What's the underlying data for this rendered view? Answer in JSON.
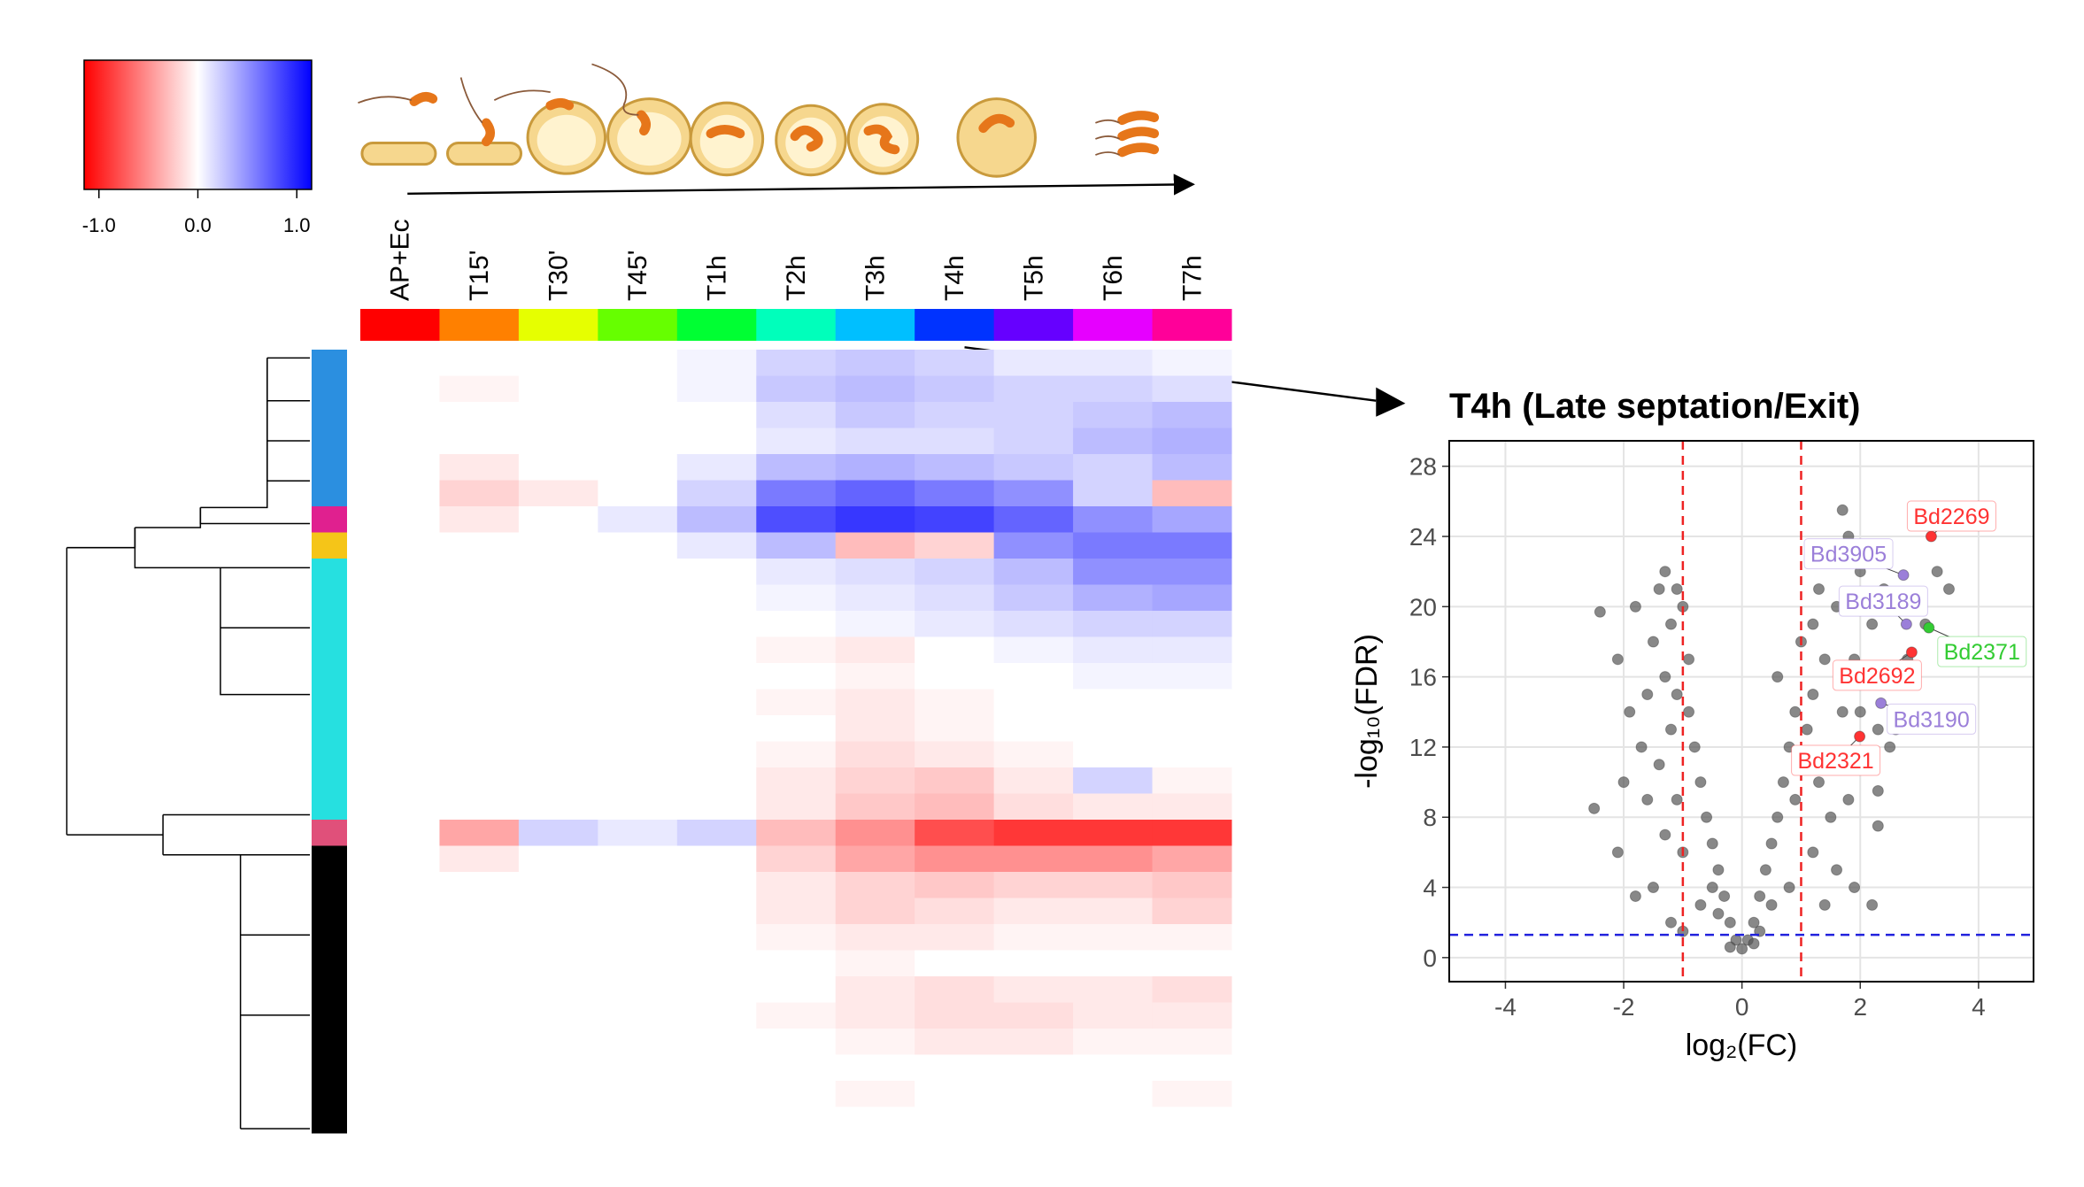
{
  "chart_data": [
    {
      "type": "heatmap",
      "categories": [
        "AP+Ec",
        "T15'",
        "T30'",
        "T45'",
        "T1h",
        "T2h",
        "T3h",
        "T4h",
        "T5h",
        "T6h",
        "T7h"
      ],
      "column_colors": [
        "#ff0000",
        "#ff8000",
        "#e6ff00",
        "#66ff00",
        "#00ff33",
        "#00ffbb",
        "#00bfff",
        "#0033ff",
        "#6600ff",
        "#e600ff",
        "#ff0099"
      ],
      "row_clusters": [
        "#2b8fe0",
        "#2b8fe0",
        "#2b8fe0",
        "#2b8fe0",
        "#2b8fe0",
        "#2b8fe0",
        "#e0208f",
        "#f5c518",
        "#26e0e0",
        "#26e0e0",
        "#26e0e0",
        "#26e0e0",
        "#26e0e0",
        "#26e0e0",
        "#26e0e0",
        "#26e0e0",
        "#26e0e0",
        "#26e0e0",
        "#e0507a",
        "#000000",
        "#000000",
        "#000000",
        "#000000",
        "#000000",
        "#000000",
        "#000000",
        "#000000",
        "#000000",
        "#000000",
        "#000000"
      ],
      "values": [
        [
          0,
          0,
          0,
          0,
          0.05,
          0.2,
          0.25,
          0.2,
          0.1,
          0.1,
          0.05
        ],
        [
          0,
          -0.05,
          0,
          0,
          0.05,
          0.25,
          0.3,
          0.25,
          0.2,
          0.2,
          0.15
        ],
        [
          0,
          0,
          0,
          0,
          0,
          0.15,
          0.25,
          0.2,
          0.2,
          0.25,
          0.3
        ],
        [
          0,
          0,
          0,
          0,
          0,
          0.1,
          0.15,
          0.15,
          0.2,
          0.3,
          0.35
        ],
        [
          0,
          -0.1,
          0,
          0,
          0.1,
          0.3,
          0.35,
          0.3,
          0.25,
          0.2,
          0.3
        ],
        [
          0,
          -0.2,
          -0.1,
          0,
          0.2,
          0.6,
          0.7,
          0.6,
          0.5,
          0.2,
          -0.3
        ],
        [
          0,
          -0.1,
          0,
          0.1,
          0.3,
          0.8,
          0.9,
          0.85,
          0.7,
          0.5,
          0.4
        ],
        [
          0,
          0,
          0,
          0,
          0.1,
          0.3,
          -0.3,
          -0.2,
          0.5,
          0.6,
          0.6
        ],
        [
          0,
          0,
          0,
          0,
          0,
          0.1,
          0.15,
          0.2,
          0.3,
          0.5,
          0.5
        ],
        [
          0,
          0,
          0,
          0,
          0,
          0.05,
          0.1,
          0.15,
          0.25,
          0.35,
          0.4
        ],
        [
          0,
          0,
          0,
          0,
          0,
          0,
          0.05,
          0.1,
          0.15,
          0.2,
          0.2
        ],
        [
          0,
          0,
          0,
          0,
          0,
          -0.05,
          -0.1,
          0,
          0.05,
          0.1,
          0.1
        ],
        [
          0,
          0,
          0,
          0,
          0,
          0,
          -0.05,
          0,
          0,
          0.05,
          0.05
        ],
        [
          0,
          0,
          0,
          0,
          0,
          -0.05,
          -0.1,
          -0.05,
          0,
          0,
          0
        ],
        [
          0,
          0,
          0,
          0,
          0,
          0,
          -0.1,
          -0.05,
          0,
          0,
          0
        ],
        [
          0,
          0,
          0,
          0,
          0,
          -0.05,
          -0.15,
          -0.1,
          -0.05,
          0,
          0
        ],
        [
          0,
          0,
          0,
          0,
          0,
          -0.1,
          -0.2,
          -0.25,
          -0.1,
          0.2,
          -0.05
        ],
        [
          0,
          0,
          0,
          0,
          0,
          -0.1,
          -0.25,
          -0.3,
          -0.15,
          -0.1,
          -0.1
        ],
        [
          0,
          -0.4,
          0.2,
          0.1,
          0.2,
          -0.3,
          -0.5,
          -0.8,
          -0.9,
          -0.9,
          -0.9
        ],
        [
          0,
          -0.1,
          0,
          0,
          0,
          -0.2,
          -0.4,
          -0.5,
          -0.5,
          -0.5,
          -0.4
        ],
        [
          0,
          0,
          0,
          0,
          0,
          -0.1,
          -0.2,
          -0.25,
          -0.2,
          -0.2,
          -0.25
        ],
        [
          0,
          0,
          0,
          0,
          0,
          -0.1,
          -0.2,
          -0.15,
          -0.1,
          -0.1,
          -0.2
        ],
        [
          0,
          0,
          0,
          0,
          0,
          -0.05,
          -0.1,
          -0.1,
          -0.05,
          -0.05,
          -0.05
        ],
        [
          0,
          0,
          0,
          0,
          0,
          0,
          -0.05,
          0,
          0,
          0,
          0
        ],
        [
          0,
          0,
          0,
          0,
          0,
          0,
          -0.1,
          -0.15,
          -0.1,
          -0.1,
          -0.15
        ],
        [
          0,
          0,
          0,
          0,
          0,
          -0.05,
          -0.1,
          -0.15,
          -0.15,
          -0.1,
          -0.1
        ],
        [
          0,
          0,
          0,
          0,
          0,
          0,
          -0.05,
          -0.1,
          -0.1,
          -0.05,
          -0.05
        ],
        [
          0,
          0,
          0,
          0,
          0,
          0,
          0,
          0,
          0,
          0,
          0
        ],
        [
          0,
          0,
          0,
          0,
          0,
          0,
          -0.05,
          0,
          0,
          0,
          -0.05
        ],
        [
          0,
          0,
          0,
          0,
          0,
          0,
          0,
          0,
          0,
          0,
          0
        ]
      ],
      "zlim": [
        -1.15,
        1.15
      ],
      "zticks": [
        {
          "value": -1,
          "label": "-1.0"
        },
        {
          "value": 0,
          "label": "0.0"
        },
        {
          "value": 1,
          "label": "1.0"
        }
      ],
      "low_color": "#ff0000",
      "mid_color": "#ffffff",
      "high_color": "#0000ff"
    },
    {
      "type": "scatter",
      "title": "T4h (Late septation/Exit)",
      "x_label": "log₂(FC)",
      "y_label": "-log₁₀(FDR)",
      "x": [
        0,
        0.1,
        -0.1,
        0.2,
        -0.2,
        0.3,
        -0.3,
        0.4,
        -0.4,
        0.5,
        -0.5,
        0.6,
        -0.6,
        0.7,
        -0.7,
        0.8,
        -0.8,
        0.9,
        -0.9,
        0.6,
        -0.9,
        1.0,
        -1.0,
        -1.1,
        -1.3,
        -1.4,
        -1.2,
        -1.5,
        -1.3,
        -1.1,
        -1.2,
        -1.4,
        -1.1,
        -1.6,
        -1.3,
        -1.0,
        -1.5,
        -1.8,
        -1.2,
        -2.4,
        -2.1,
        -1.9,
        -1.7,
        -2.0,
        -2.5,
        -2.1,
        -1.8,
        -1.6,
        0.5,
        -0.4,
        0.2,
        -0.2,
        0.3,
        -0.5,
        0.9,
        1.1,
        1.2,
        1.3,
        1.5,
        1.7,
        1.8,
        2.0,
        1.6,
        1.4,
        1.2,
        1.1,
        1.3,
        1.5,
        1.2,
        1.6,
        1.9,
        2.2,
        1.4,
        1.7,
        1.9,
        2.2,
        2.4,
        2.6,
        2.1,
        2.3,
        2.5,
        2.0,
        1.8,
        2.3,
        2.3,
        2.6,
        2.8,
        3.0,
        3.3,
        3.5,
        3.1,
        2.0,
        1.6,
        0.8,
        -0.7,
        -1.0
      ],
      "y": [
        0.5,
        1,
        1,
        2,
        2,
        3.5,
        3.5,
        5,
        5,
        6.5,
        6.5,
        8,
        8,
        10,
        10,
        12,
        12,
        14,
        14,
        16,
        17,
        18,
        20,
        21,
        22,
        21,
        19,
        18,
        16,
        15,
        13,
        11,
        9,
        9,
        7,
        6,
        4,
        3.5,
        2,
        19.7,
        17,
        14,
        12,
        10,
        8.5,
        6,
        20,
        15,
        3,
        2.5,
        0.8,
        0.6,
        1.5,
        4,
        9,
        11,
        19,
        21,
        23,
        25.5,
        24,
        22,
        20,
        17,
        15,
        13,
        10,
        8,
        6,
        5,
        4,
        3,
        3,
        14,
        17,
        19,
        21,
        20,
        16,
        13,
        12,
        11,
        9,
        7.5,
        9.5,
        13,
        17,
        20,
        22,
        21,
        19,
        14,
        11,
        4,
        3,
        1.5
      ],
      "color": "#555555",
      "annotations": [
        {
          "label": "Bd2269",
          "x": 3.2,
          "y": 24.0,
          "color": "#ff3333"
        },
        {
          "label": "Bd3905",
          "x": 2.73,
          "y": 21.8,
          "color": "#9b7fd9"
        },
        {
          "label": "Bd3189",
          "x": 2.78,
          "y": 19.0,
          "color": "#9b7fd9"
        },
        {
          "label": "Bd2371",
          "x": 3.16,
          "y": 18.8,
          "color": "#33cc33"
        },
        {
          "label": "Bd2692",
          "x": 2.87,
          "y": 17.4,
          "color": "#ff3333"
        },
        {
          "label": "Bd3190",
          "x": 2.35,
          "y": 14.5,
          "color": "#9b7fd9"
        },
        {
          "label": "Bd2321",
          "x": 1.99,
          "y": 12.6,
          "color": "#ff3333"
        }
      ],
      "threshold_x": [
        -1,
        1
      ],
      "threshold_x_color": "#ee2222",
      "threshold_y": 1.3,
      "threshold_y_color": "#2222dd",
      "xlim": [
        -4.95,
        4.93
      ],
      "ylim": [
        -1.37,
        29.45
      ],
      "xticks": [
        -4,
        -2,
        0,
        2,
        4
      ],
      "yticks": [
        0,
        4,
        8,
        12,
        16,
        20,
        24,
        28
      ],
      "grid": true
    }
  ]
}
